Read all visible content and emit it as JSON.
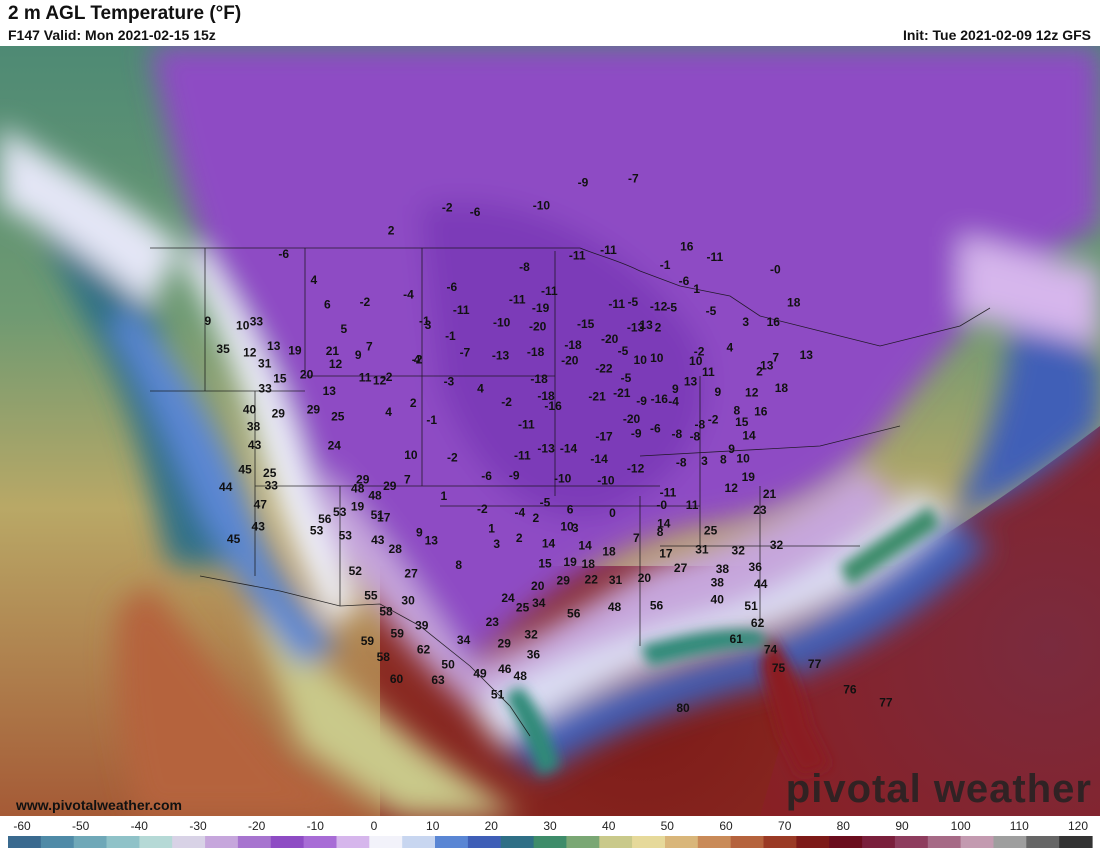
{
  "header": {
    "title": "2 m AGL Temperature (°F)",
    "valid": "F147 Valid: Mon 2021-02-15 15z",
    "init": "Init: Tue 2021-02-09 12z GFS"
  },
  "watermark": {
    "site": "www.pivotalweather.com",
    "brand": "pivotal weather"
  },
  "colorbar": {
    "ticks": [
      "-60",
      "-50",
      "-40",
      "-30",
      "-20",
      "-10",
      "0",
      "10",
      "20",
      "30",
      "40",
      "50",
      "60",
      "70",
      "80",
      "90",
      "100",
      "110",
      "120"
    ],
    "colors": [
      "#3a6a8f",
      "#4f8aa7",
      "#6fa8b8",
      "#8fc2c8",
      "#b5d9d6",
      "#d8d2e6",
      "#c6a6dc",
      "#a774cf",
      "#8e4cc4",
      "#a86cd6",
      "#d6b6ec",
      "#f2f2fa",
      "#c8d6f0",
      "#5a86d4",
      "#3f5fb7",
      "#2f6f86",
      "#3e8c6a",
      "#7aa774",
      "#c9c98a",
      "#e6d99a",
      "#d9b67a",
      "#c98a58",
      "#b5633d",
      "#9a3a25",
      "#7d1a18",
      "#6b0d1d",
      "#7a1f3c",
      "#8e3d5e",
      "#a66a86",
      "#c39ab0",
      "#9e9e9e",
      "#666666",
      "#333333"
    ]
  },
  "map_labels": [
    {
      "t": "-6",
      "lon": -131.5,
      "lat": 53.5
    },
    {
      "t": "2",
      "lon": -117.5,
      "lat": 53.8
    },
    {
      "t": "-2",
      "lon": -110.5,
      "lat": 55.0
    },
    {
      "t": "-6",
      "lon": -106.5,
      "lat": 54.5
    },
    {
      "t": "-10",
      "lon": -97.5,
      "lat": 54.8
    },
    {
      "t": "-9",
      "lon": -91.5,
      "lat": 56.5
    },
    {
      "t": "-7",
      "lon": -84.0,
      "lat": 57.0
    },
    {
      "t": "9",
      "lon": -137.0,
      "lat": 49.5
    },
    {
      "t": "4",
      "lon": -125.5,
      "lat": 51.0
    },
    {
      "t": "10",
      "lon": -132.0,
      "lat": 48.5
    },
    {
      "t": "6",
      "lon": -122.5,
      "lat": 49.0
    },
    {
      "t": "-2",
      "lon": -118.0,
      "lat": 48.8
    },
    {
      "t": "-4",
      "lon": -113.0,
      "lat": 49.0
    },
    {
      "t": "-6",
      "lon": -108.0,
      "lat": 49.3
    },
    {
      "t": "-8",
      "lon": -99.5,
      "lat": 50.5
    },
    {
      "t": "-11",
      "lon": -93.0,
      "lat": 51.3
    },
    {
      "t": "-11",
      "lon": -89.0,
      "lat": 51.8
    },
    {
      "t": "12",
      "lon": -129.5,
      "lat": 46.3
    },
    {
      "t": "5",
      "lon": -119.5,
      "lat": 47.0
    },
    {
      "t": "-1",
      "lon": -110.5,
      "lat": 47.0
    },
    {
      "t": "-12",
      "lon": -84.0,
      "lat": 48.0
    },
    {
      "t": "15",
      "lon": -124.8,
      "lat": 44.0
    },
    {
      "t": "9",
      "lon": -117.0,
      "lat": 45.0
    },
    {
      "t": "12",
      "lon": -114.0,
      "lat": 43.0
    },
    {
      "t": "4",
      "lon": -110.5,
      "lat": 44.3
    },
    {
      "t": "-7",
      "lon": -105.5,
      "lat": 44.6
    },
    {
      "t": "-18",
      "lon": -98.0,
      "lat": 44.5
    },
    {
      "t": "-18",
      "lon": -94.0,
      "lat": 45.0
    },
    {
      "t": "-20",
      "lon": -90.0,
      "lat": 45.5
    },
    {
      "t": "-11",
      "lon": -96.5,
      "lat": 48.8
    },
    {
      "t": "-11",
      "lon": -100.2,
      "lat": 48.2
    },
    {
      "t": "-19",
      "lon": -97.5,
      "lat": 47.6
    },
    {
      "t": "-10",
      "lon": -101.8,
      "lat": 46.6
    },
    {
      "t": "-20",
      "lon": -97.8,
      "lat": 46.3
    },
    {
      "t": "-15",
      "lon": -92.5,
      "lat": 46.5
    },
    {
      "t": "-13",
      "lon": -101.7,
      "lat": 44.3
    },
    {
      "t": "-20",
      "lon": -94.4,
      "lat": 43.9
    },
    {
      "t": "-22",
      "lon": -90.9,
      "lat": 43.4
    },
    {
      "t": "-18",
      "lon": -97.6,
      "lat": 42.6
    },
    {
      "t": "-18",
      "lon": -96.9,
      "lat": 41.4
    },
    {
      "t": "-21",
      "lon": -91.8,
      "lat": 41.4
    },
    {
      "t": "-21",
      "lon": -89.3,
      "lat": 41.7
    },
    {
      "t": "-16",
      "lon": -96.2,
      "lat": 40.7
    },
    {
      "t": "-11",
      "lon": -98.8,
      "lat": 39.4
    },
    {
      "t": "-20",
      "lon": -88.6,
      "lat": 39.9
    },
    {
      "t": "-16",
      "lon": -85.6,
      "lat": 41.4
    },
    {
      "t": "-11",
      "lon": -106.5,
      "lat": 47.6
    },
    {
      "t": "-1",
      "lon": -107.3,
      "lat": 45.8
    },
    {
      "t": "3",
      "lon": -110.0,
      "lat": 46.7
    },
    {
      "t": "-2",
      "lon": -110.5,
      "lat": 44.3
    },
    {
      "t": "-3",
      "lon": -106.8,
      "lat": 42.6
    },
    {
      "t": "4",
      "lon": -103.5,
      "lat": 42.0
    },
    {
      "t": "-2",
      "lon": -100.8,
      "lat": 41.0
    },
    {
      "t": "19",
      "lon": -124.3,
      "lat": 45.9
    },
    {
      "t": "21",
      "lon": -120.0,
      "lat": 45.5
    },
    {
      "t": "20",
      "lon": -122.0,
      "lat": 44.0
    },
    {
      "t": "12",
      "lon": -119.2,
      "lat": 44.5
    },
    {
      "t": "7",
      "lon": -116.0,
      "lat": 45.5
    },
    {
      "t": "11",
      "lon": -115.6,
      "lat": 43.3
    },
    {
      "t": "-2",
      "lon": -113.3,
      "lat": 43.2
    },
    {
      "t": "13",
      "lon": -119.0,
      "lat": 42.6
    },
    {
      "t": "29",
      "lon": -123.6,
      "lat": 41.4
    },
    {
      "t": "29",
      "lon": -120.1,
      "lat": 41.4
    },
    {
      "t": "25",
      "lon": -117.4,
      "lat": 40.7
    },
    {
      "t": "4",
      "lon": -112.4,
      "lat": 40.7
    },
    {
      "t": "2",
      "lon": -110.1,
      "lat": 41.2
    },
    {
      "t": "-1",
      "lon": -108.0,
      "lat": 39.9
    },
    {
      "t": "24",
      "lon": -117.0,
      "lat": 38.6
    },
    {
      "t": "25",
      "lon": -122.5,
      "lat": 37.1
    },
    {
      "t": "10",
      "lon": -109.5,
      "lat": 37.5
    },
    {
      "t": "-2",
      "lon": -105.6,
      "lat": 37.2
    },
    {
      "t": "7",
      "lon": -109.5,
      "lat": 35.8
    },
    {
      "t": "29",
      "lon": -113.6,
      "lat": 36.0
    },
    {
      "t": "-6",
      "lon": -102.3,
      "lat": 35.8
    },
    {
      "t": "-9",
      "lon": -99.8,
      "lat": 35.8
    },
    {
      "t": "-11",
      "lon": -99.1,
      "lat": 37.2
    },
    {
      "t": "-13",
      "lon": -96.9,
      "lat": 37.7
    },
    {
      "t": "-14",
      "lon": -94.8,
      "lat": 37.7
    },
    {
      "t": "-14",
      "lon": -92.0,
      "lat": 37.0
    },
    {
      "t": "-17",
      "lon": -91.4,
      "lat": 38.6
    },
    {
      "t": "-10",
      "lon": -95.4,
      "lat": 35.6
    },
    {
      "t": "-10",
      "lon": -91.5,
      "lat": 35.5
    },
    {
      "t": "-12",
      "lon": -88.7,
      "lat": 36.4
    },
    {
      "t": "-9",
      "lon": -88.3,
      "lat": 38.9
    },
    {
      "t": "-6",
      "lon": -86.4,
      "lat": 39.3
    },
    {
      "t": "-8",
      "lon": -84.4,
      "lat": 39.0
    },
    {
      "t": "-8",
      "lon": -84.4,
      "lat": 37.0
    },
    {
      "t": "-8",
      "lon": -82.7,
      "lat": 38.9
    },
    {
      "t": "3",
      "lon": -82.2,
      "lat": 37.2
    },
    {
      "t": "8",
      "lon": -80.4,
      "lat": 37.4
    },
    {
      "t": "12",
      "lon": -80.2,
      "lat": 35.4
    },
    {
      "t": "19",
      "lon": -78.4,
      "lat": 36.3
    },
    {
      "t": "21",
      "lon": -76.8,
      "lat": 35.2
    },
    {
      "t": "23",
      "lon": -78.0,
      "lat": 34.0
    },
    {
      "t": "-5",
      "lon": -97.0,
      "lat": 33.9
    },
    {
      "t": "-4",
      "lon": -99.2,
      "lat": 33.2
    },
    {
      "t": "6",
      "lon": -94.8,
      "lat": 33.4
    },
    {
      "t": "3",
      "lon": -94.4,
      "lat": 32.1
    },
    {
      "t": "0",
      "lon": -91.1,
      "lat": 33.2
    },
    {
      "t": "-0",
      "lon": -86.7,
      "lat": 33.9
    },
    {
      "t": "-11",
      "lon": -86.0,
      "lat": 34.8
    },
    {
      "t": "14",
      "lon": -86.7,
      "lat": 32.6
    },
    {
      "t": "11",
      "lon": -84.0,
      "lat": 34.0
    },
    {
      "t": "25",
      "lon": -82.7,
      "lat": 32.3
    },
    {
      "t": "32",
      "lon": -80.6,
      "lat": 31.0
    },
    {
      "t": "36",
      "lon": -79.4,
      "lat": 29.9
    },
    {
      "t": "32",
      "lon": -77.2,
      "lat": 31.6
    },
    {
      "t": "7",
      "lon": -89.2,
      "lat": 31.5
    },
    {
      "t": "8",
      "lon": -87.1,
      "lat": 32.0
    },
    {
      "t": "17",
      "lon": -86.8,
      "lat": 30.5
    },
    {
      "t": "31",
      "lon": -83.7,
      "lat": 30.9
    },
    {
      "t": "27",
      "lon": -85.7,
      "lat": 29.5
    },
    {
      "t": "38",
      "lon": -82.2,
      "lat": 29.6
    },
    {
      "t": "38",
      "lon": -82.8,
      "lat": 28.6
    },
    {
      "t": "44",
      "lon": -79.2,
      "lat": 28.7
    },
    {
      "t": "40",
      "lon": -83.0,
      "lat": 27.4
    },
    {
      "t": "51",
      "lon": -80.3,
      "lat": 27.1
    },
    {
      "t": "62",
      "lon": -80.0,
      "lat": 25.9
    },
    {
      "t": "61",
      "lon": -81.9,
      "lat": 24.7
    },
    {
      "t": "74",
      "lon": -79.3,
      "lat": 24.1
    },
    {
      "t": "75",
      "lon": -78.9,
      "lat": 22.8
    },
    {
      "t": "77",
      "lon": -76.0,
      "lat": 23.3
    },
    {
      "t": "76",
      "lon": -73.6,
      "lat": 21.7
    },
    {
      "t": "77",
      "lon": -71.0,
      "lat": 21.0
    },
    {
      "t": "80",
      "lon": -86.6,
      "lat": 19.6
    },
    {
      "t": "-2",
      "lon": -102.5,
      "lat": 33.5
    },
    {
      "t": "2",
      "lon": -97.8,
      "lat": 32.8
    },
    {
      "t": "1",
      "lon": -101.6,
      "lat": 32.1
    },
    {
      "t": "3",
      "lon": -101.1,
      "lat": 31.0
    },
    {
      "t": "2",
      "lon": -99.2,
      "lat": 31.4
    },
    {
      "t": "10",
      "lon": -95.1,
      "lat": 32.2
    },
    {
      "t": "14",
      "lon": -96.7,
      "lat": 31.0
    },
    {
      "t": "14",
      "lon": -93.6,
      "lat": 30.9
    },
    {
      "t": "18",
      "lon": -91.6,
      "lat": 30.5
    },
    {
      "t": "15",
      "lon": -97.0,
      "lat": 29.6
    },
    {
      "t": "19",
      "lon": -94.9,
      "lat": 29.7
    },
    {
      "t": "18",
      "lon": -93.4,
      "lat": 29.6
    },
    {
      "t": "22",
      "lon": -93.2,
      "lat": 28.5
    },
    {
      "t": "29",
      "lon": -95.5,
      "lat": 28.4
    },
    {
      "t": "31",
      "lon": -91.2,
      "lat": 28.5
    },
    {
      "t": "20",
      "lon": -88.8,
      "lat": 28.7
    },
    {
      "t": "20",
      "lon": -97.6,
      "lat": 28.0
    },
    {
      "t": "24",
      "lon": -100.0,
      "lat": 27.2
    },
    {
      "t": "25",
      "lon": -98.8,
      "lat": 26.5
    },
    {
      "t": "34",
      "lon": -97.5,
      "lat": 26.8
    },
    {
      "t": "56",
      "lon": -94.7,
      "lat": 26.1
    },
    {
      "t": "48",
      "lon": -91.4,
      "lat": 26.6
    },
    {
      "t": "56",
      "lon": -88.0,
      "lat": 26.8
    },
    {
      "t": "23",
      "lon": -101.2,
      "lat": 25.5
    },
    {
      "t": "29",
      "lon": -100.2,
      "lat": 24.0
    },
    {
      "t": "32",
      "lon": -98.1,
      "lat": 24.6
    },
    {
      "t": "36",
      "lon": -97.9,
      "lat": 23.2
    },
    {
      "t": "34",
      "lon": -103.4,
      "lat": 24.3
    },
    {
      "t": "46",
      "lon": -100.1,
      "lat": 22.2
    },
    {
      "t": "48",
      "lon": -98.9,
      "lat": 21.7
    },
    {
      "t": "49",
      "lon": -102.0,
      "lat": 21.9
    },
    {
      "t": "51",
      "lon": -100.6,
      "lat": 20.4
    },
    {
      "t": "50",
      "lon": -104.5,
      "lat": 22.6
    },
    {
      "t": "39",
      "lon": -106.8,
      "lat": 25.4
    },
    {
      "t": "30",
      "lon": -108.1,
      "lat": 27.2
    },
    {
      "t": "27",
      "lon": -108.1,
      "lat": 29.1
    },
    {
      "t": "8",
      "lon": -104.2,
      "lat": 29.6
    },
    {
      "t": "13",
      "lon": -106.7,
      "lat": 31.4
    },
    {
      "t": "28",
      "lon": -109.7,
      "lat": 30.9
    },
    {
      "t": "43",
      "lon": -111.3,
      "lat": 31.6
    },
    {
      "t": "51",
      "lon": -111.7,
      "lat": 33.4
    },
    {
      "t": "29",
      "lon": -111.0,
      "lat": 35.4
    },
    {
      "t": "48",
      "lon": -112.2,
      "lat": 34.8
    },
    {
      "t": "48",
      "lon": -113.9,
      "lat": 35.4
    },
    {
      "t": "53",
      "lon": -115.1,
      "lat": 33.8
    },
    {
      "t": "56",
      "lon": -116.3,
      "lat": 33.4
    },
    {
      "t": "53",
      "lon": -116.8,
      "lat": 32.6
    },
    {
      "t": "53",
      "lon": -114.2,
      "lat": 32.1
    },
    {
      "t": "52",
      "lon": -112.8,
      "lat": 29.5
    },
    {
      "t": "55",
      "lon": -111.2,
      "lat": 27.7
    },
    {
      "t": "58",
      "lon": -109.8,
      "lat": 26.5
    },
    {
      "t": "59",
      "lon": -108.7,
      "lat": 24.9
    },
    {
      "t": "62",
      "lon": -106.5,
      "lat": 23.7
    },
    {
      "t": "63",
      "lon": -105.2,
      "lat": 21.5
    },
    {
      "t": "59",
      "lon": -111.0,
      "lat": 24.5
    },
    {
      "t": "58",
      "lon": -109.6,
      "lat": 23.3
    },
    {
      "t": "60",
      "lon": -108.4,
      "lat": 21.7
    },
    {
      "t": "33",
      "lon": -122.0,
      "lat": 36.2
    },
    {
      "t": "45",
      "lon": -125.0,
      "lat": 37.6
    },
    {
      "t": "44",
      "lon": -126.3,
      "lat": 36.5
    },
    {
      "t": "47",
      "lon": -122.5,
      "lat": 34.9
    },
    {
      "t": "43",
      "lon": -122.1,
      "lat": 33.3
    },
    {
      "t": "45",
      "lon": -124.0,
      "lat": 32.6
    },
    {
      "t": "43",
      "lon": -124.9,
      "lat": 39.3
    },
    {
      "t": "38",
      "lon": -125.7,
      "lat": 40.7
    },
    {
      "t": "40",
      "lon": -126.8,
      "lat": 42.0
    },
    {
      "t": "33",
      "lon": -126.0,
      "lat": 43.4
    },
    {
      "t": "31",
      "lon": -127.2,
      "lat": 45.3
    },
    {
      "t": "33",
      "lon": -130.5,
      "lat": 48.6
    },
    {
      "t": "35",
      "lon": -133.0,
      "lat": 47.0
    },
    {
      "t": "13",
      "lon": -127.0,
      "lat": 46.5
    },
    {
      "t": "19",
      "lon": -113.6,
      "lat": 34.1
    },
    {
      "t": "17",
      "lon": -111.1,
      "lat": 33.2
    },
    {
      "t": "9",
      "lon": -107.8,
      "lat": 32.0
    },
    {
      "t": "1",
      "lon": -106.0,
      "lat": 34.5
    },
    {
      "t": "16",
      "lon": -78.8,
      "lat": 52.5
    },
    {
      "t": "-11",
      "lon": -75.5,
      "lat": 52.0
    },
    {
      "t": "-1",
      "lon": -82.2,
      "lat": 51.0
    },
    {
      "t": "-6",
      "lon": -80.3,
      "lat": 50.0
    },
    {
      "t": "1",
      "lon": -79.0,
      "lat": 49.5
    },
    {
      "t": "-5",
      "lon": -82.5,
      "lat": 48.0
    },
    {
      "t": "-5",
      "lon": -78.0,
      "lat": 48.0
    },
    {
      "t": "3",
      "lon": -74.3,
      "lat": 47.5
    },
    {
      "t": "16",
      "lon": -71.0,
      "lat": 47.8
    },
    {
      "t": "18",
      "lon": -67.5,
      "lat": 49.5
    },
    {
      "t": "-0",
      "lon": -68.0,
      "lat": 51.8
    },
    {
      "t": "2",
      "lon": -84.5,
      "lat": 46.5
    },
    {
      "t": "-2",
      "lon": -80.5,
      "lat": 45.0
    },
    {
      "t": "4",
      "lon": -77.0,
      "lat": 45.5
    },
    {
      "t": "2",
      "lon": -74.5,
      "lat": 44.0
    },
    {
      "t": "7",
      "lon": -72.2,
      "lat": 45.2
    },
    {
      "t": "13",
      "lon": -68.6,
      "lat": 45.7
    },
    {
      "t": "13",
      "lon": -73.5,
      "lat": 44.5
    },
    {
      "t": "18",
      "lon": -72.7,
      "lat": 43.0
    },
    {
      "t": "12",
      "lon": -76.0,
      "lat": 42.4
    },
    {
      "t": "16",
      "lon": -75.6,
      "lat": 41.1
    },
    {
      "t": "15",
      "lon": -77.8,
      "lat": 40.2
    },
    {
      "t": "14",
      "lon": -77.4,
      "lat": 39.3
    },
    {
      "t": "8",
      "lon": -78.0,
      "lat": 41.0
    },
    {
      "t": "-2",
      "lon": -80.6,
      "lat": 40.2
    },
    {
      "t": "-8",
      "lon": -82.0,
      "lat": 39.8
    },
    {
      "t": "9",
      "lon": -79.5,
      "lat": 42.2
    },
    {
      "t": "11",
      "lon": -80.0,
      "lat": 43.6
    },
    {
      "t": "10",
      "lon": -81.1,
      "lat": 44.3
    },
    {
      "t": "13",
      "lon": -82.1,
      "lat": 42.8
    },
    {
      "t": "9",
      "lon": -83.8,
      "lat": 42.2
    },
    {
      "t": "10",
      "lon": -85.2,
      "lat": 44.3
    },
    {
      "t": "10",
      "lon": -87.0,
      "lat": 44.1
    },
    {
      "t": "-5",
      "lon": -88.7,
      "lat": 44.7
    },
    {
      "t": "-5",
      "lon": -88.7,
      "lat": 42.8
    },
    {
      "t": "-9",
      "lon": -87.4,
      "lat": 41.2
    },
    {
      "t": "-4",
      "lon": -84.2,
      "lat": 41.3
    },
    {
      "t": "-11",
      "lon": -88.8,
      "lat": 48.0
    },
    {
      "t": "-5",
      "lon": -86.9,
      "lat": 48.2
    },
    {
      "t": "13",
      "lon": -85.8,
      "lat": 46.6
    },
    {
      "t": "-13",
      "lon": -87.0,
      "lat": 46.4
    },
    {
      "t": "9",
      "lon": -79.4,
      "lat": 38.2
    },
    {
      "t": "10",
      "lon": -78.5,
      "lat": 37.6
    }
  ]
}
